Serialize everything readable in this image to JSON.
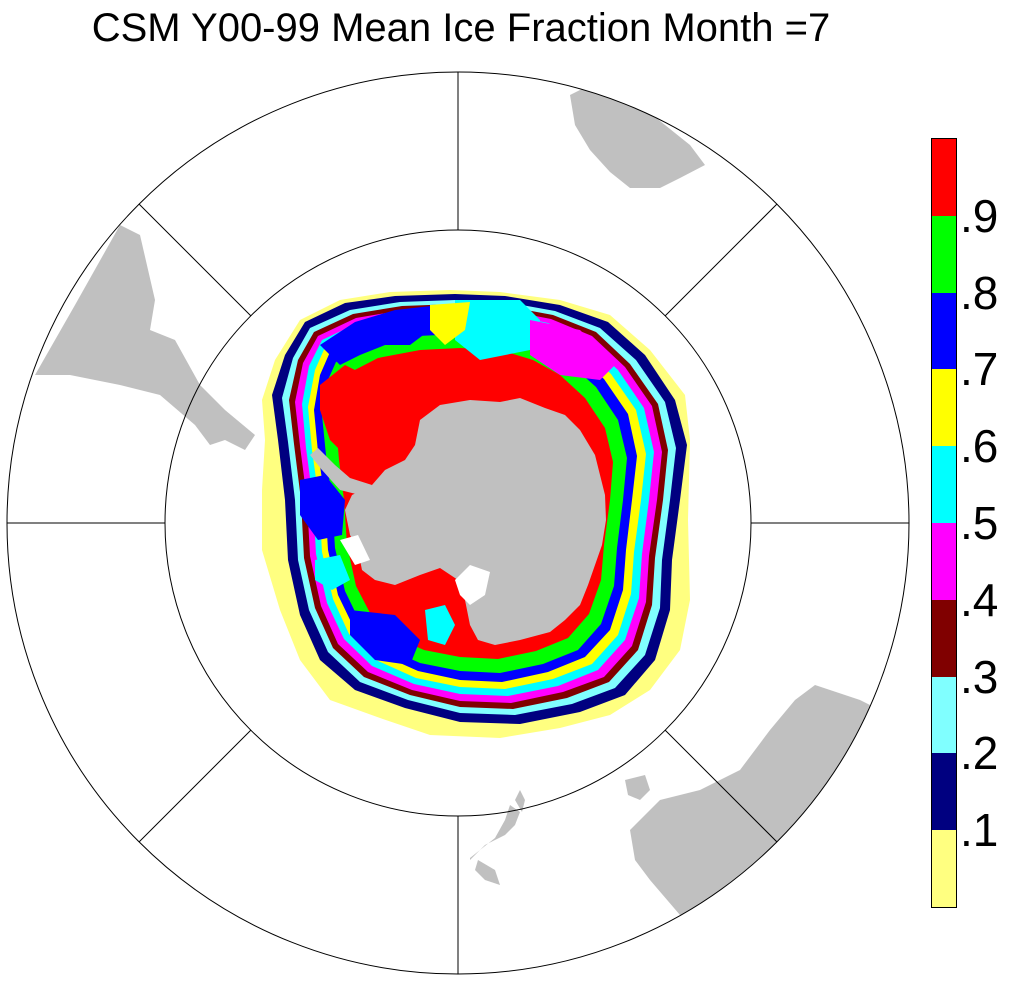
{
  "title": "CSM Y00-99 Mean Ice Fraction Month =7",
  "map": {
    "projection": "south polar stereographic",
    "land_color": "#c0c0c0",
    "gridline_color": "#000000",
    "ocean_color": "#ffffff"
  },
  "colorbar": {
    "orientation": "vertical",
    "colors": [
      "#ffff80",
      "#000080",
      "#80ffff",
      "#800000",
      "#ff00ff",
      "#00ffff",
      "#ffff00",
      "#0000ff",
      "#00ff00",
      "#ff0000"
    ],
    "labels": [
      ".1",
      ".2",
      ".3",
      ".4",
      ".5",
      ".6",
      ".7",
      ".8",
      ".9"
    ]
  },
  "chart_data": {
    "type": "heatmap",
    "title": "CSM Y00-99 Mean Ice Fraction Month =7",
    "variable": "Mean Ice Fraction",
    "month": 7,
    "levels": [
      0.1,
      0.2,
      0.3,
      0.4,
      0.5,
      0.6,
      0.7,
      0.8,
      0.9
    ],
    "level_labels": [
      ".1",
      ".2",
      ".3",
      ".4",
      ".5",
      ".6",
      ".7",
      ".8",
      ".9"
    ]
  }
}
